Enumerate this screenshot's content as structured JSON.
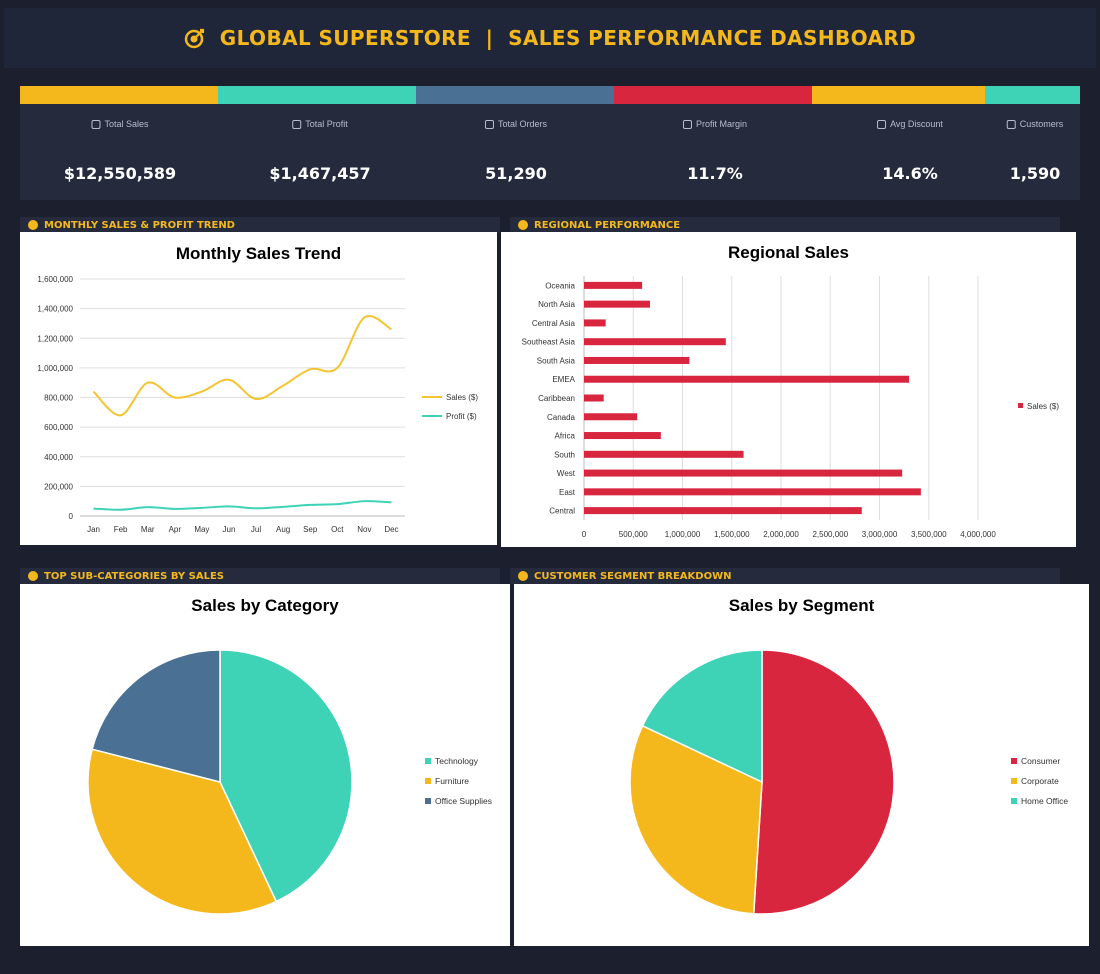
{
  "header": {
    "title": "GLOBAL SUPERSTORE  |  SALES PERFORMANCE DASHBOARD",
    "icon": "target-icon"
  },
  "kpis": [
    {
      "label": "Total Sales",
      "value": "$12,550,589",
      "color": "#f5b81c",
      "icon": "money-bag-icon"
    },
    {
      "label": "Total Profit",
      "value": "$1,467,457",
      "color": "#3ed3b6",
      "icon": "calculator-icon"
    },
    {
      "label": "Total Orders",
      "value": "51,290",
      "color": "#4a7094",
      "icon": "box-icon"
    },
    {
      "label": "Profit Margin",
      "value": "11.7%",
      "color": "#d9263f",
      "icon": "chart-icon"
    },
    {
      "label": "Avg Discount",
      "value": "14.6%",
      "color": "#f5b81c",
      "icon": "tag-icon"
    },
    {
      "label": "Customers",
      "value": "1,590",
      "color": "#3ed3b6",
      "icon": "users-icon"
    }
  ],
  "sections": {
    "monthly": "MONTHLY SALES & PROFIT TREND",
    "regional": "REGIONAL PERFORMANCE",
    "subcategories": "TOP SUB-CATEGORIES BY SALES",
    "segment": "CUSTOMER SEGMENT BREAKDOWN"
  },
  "chart_data": [
    {
      "type": "line",
      "title": "Monthly Sales Trend",
      "categories": [
        "Jan",
        "Feb",
        "Mar",
        "Apr",
        "May",
        "Jun",
        "Jul",
        "Aug",
        "Sep",
        "Oct",
        "Nov",
        "Dec"
      ],
      "series": [
        {
          "name": "Sales ($)",
          "color": "#f5c431",
          "values": [
            840000,
            680000,
            900000,
            800000,
            840000,
            920000,
            790000,
            880000,
            990000,
            1000000,
            1340000,
            1260000
          ]
        },
        {
          "name": "Profit ($)",
          "color": "#3ed3b6",
          "values": [
            50000,
            42000,
            60000,
            48000,
            55000,
            65000,
            52000,
            62000,
            75000,
            80000,
            100000,
            92000
          ]
        }
      ],
      "ylim": [
        0,
        1600000
      ],
      "yticks": [
        "0",
        "200,000",
        "400,000",
        "600,000",
        "800,000",
        "1,000,000",
        "1,200,000",
        "1,400,000",
        "1,600,000"
      ],
      "legend": "right",
      "grid": true
    },
    {
      "type": "bar",
      "orientation": "horizontal",
      "title": "Regional Sales",
      "categories": [
        "Oceania",
        "North Asia",
        "Central Asia",
        "Southeast Asia",
        "South Asia",
        "EMEA",
        "Caribbean",
        "Canada",
        "Africa",
        "South",
        "West",
        "East",
        "Central"
      ],
      "series": [
        {
          "name": "Sales ($)",
          "color": "#d9263f",
          "values": [
            590000,
            670000,
            220000,
            1440000,
            1070000,
            3300000,
            200000,
            540000,
            780000,
            1620000,
            3230000,
            3420000,
            2820000
          ]
        }
      ],
      "xlim": [
        0,
        4000000
      ],
      "xticks": [
        "0",
        "500,000",
        "1,000,000",
        "1,500,000",
        "2,000,000",
        "2,500,000",
        "3,000,000",
        "3,500,000",
        "4,000,000"
      ],
      "legend": "right",
      "grid": true
    },
    {
      "type": "pie",
      "title": "Sales by Category",
      "labels": [
        "Technology",
        "Furniture",
        "Office Supplies"
      ],
      "values": [
        43,
        36,
        21
      ],
      "colors": [
        "#3ed3b6",
        "#f5b81c",
        "#4a7094"
      ],
      "legend": "right"
    },
    {
      "type": "pie",
      "title": "Sales by Segment",
      "labels": [
        "Consumer",
        "Corporate",
        "Home Office"
      ],
      "values": [
        51,
        31,
        18
      ],
      "colors": [
        "#d9263f",
        "#f5b81c",
        "#3ed3b6"
      ],
      "legend": "right"
    }
  ]
}
